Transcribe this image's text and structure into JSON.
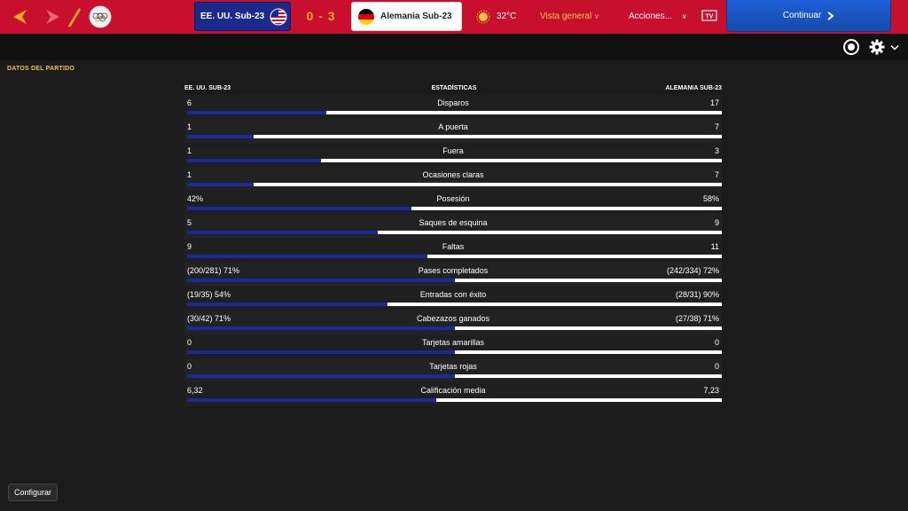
{
  "topbar": {
    "home_team": "EE. UU. Sub-23",
    "score": "0 - 3",
    "away_team": "Alemania Sub-23",
    "temperature": "32°C",
    "view_menu": "Vista general",
    "actions_menu": "Acciones...",
    "tv_label": "TV",
    "continue_label": "Continuar",
    "colors": {
      "bar": "#c8102e",
      "score": "#f6b024",
      "continue": "#1d5fd8"
    }
  },
  "section_title": "DATOS DEL PARTIDO",
  "columns": {
    "home": "EE. UU. SUB-23",
    "middle": "ESTADÍSTICAS",
    "away": "ALEMANIA SUB-23"
  },
  "stats": [
    {
      "label": "Disparos",
      "home": "6",
      "away": "17",
      "home_share": 0.26
    },
    {
      "label": "A puerta",
      "home": "1",
      "away": "7",
      "home_share": 0.125
    },
    {
      "label": "Fuera",
      "home": "1",
      "away": "3",
      "home_share": 0.25
    },
    {
      "label": "Ocasiones claras",
      "home": "1",
      "away": "7",
      "home_share": 0.125
    },
    {
      "label": "Posesión",
      "home": "42%",
      "away": "58%",
      "home_share": 0.42
    },
    {
      "label": "Saques de esquina",
      "home": "5",
      "away": "9",
      "home_share": 0.357
    },
    {
      "label": "Faltas",
      "home": "9",
      "away": "11",
      "home_share": 0.45
    },
    {
      "label": "Pases completados",
      "home": "(200/281) 71%",
      "away": "(242/334) 72%",
      "home_share": 0.5
    },
    {
      "label": "Entradas con éxito",
      "home": "(19/35) 54%",
      "away": "(28/31) 90%",
      "home_share": 0.375
    },
    {
      "label": "Cabezazos ganados",
      "home": "(30/42) 71%",
      "away": "(27/38) 71%",
      "home_share": 0.5
    },
    {
      "label": "Tarjetas amarillas",
      "home": "0",
      "away": "0",
      "home_share": 0.5
    },
    {
      "label": "Tarjetas rojas",
      "home": "0",
      "away": "0",
      "home_share": 0.5
    },
    {
      "label": "Calificación media",
      "home": "6,32",
      "away": "7,23",
      "home_share": 0.466
    }
  ],
  "footer": {
    "configure_label": "Configurar"
  }
}
